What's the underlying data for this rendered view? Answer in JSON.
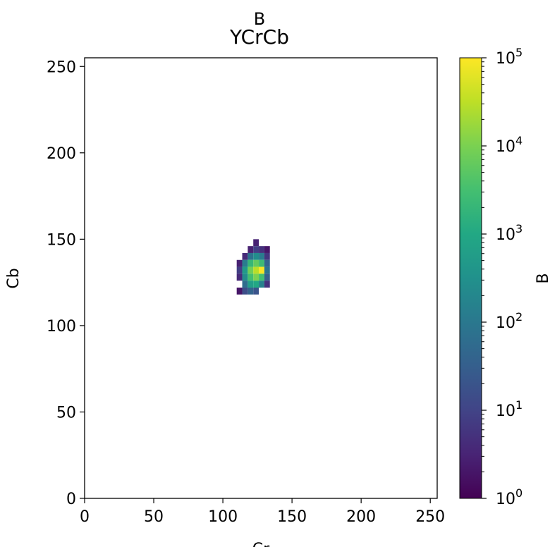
{
  "chart_data": {
    "type": "heatmap",
    "suptitle": "B",
    "title": "YCrCb",
    "xlabel": "Cr",
    "ylabel": "Cb",
    "xlim": [
      0,
      255
    ],
    "ylim": [
      0,
      255
    ],
    "xticks": [
      0,
      50,
      100,
      150,
      200,
      250
    ],
    "yticks": [
      0,
      50,
      100,
      150,
      200,
      250
    ],
    "colormap": "viridis",
    "colorbar": {
      "label": "B",
      "scale": "log",
      "range": [
        1,
        100000
      ],
      "tick_labels": [
        {
          "base": "10",
          "exp": "0"
        },
        {
          "base": "10",
          "exp": "1"
        },
        {
          "base": "10",
          "exp": "2"
        },
        {
          "base": "10",
          "exp": "3"
        },
        {
          "base": "10",
          "exp": "4"
        },
        {
          "base": "10",
          "exp": "5"
        }
      ]
    },
    "bin_size": 4,
    "cells": [
      {
        "x": 122,
        "y": 146,
        "v": 3
      },
      {
        "x": 118,
        "y": 142,
        "v": 3
      },
      {
        "x": 122,
        "y": 142,
        "v": 8
      },
      {
        "x": 126,
        "y": 142,
        "v": 5
      },
      {
        "x": 130,
        "y": 142,
        "v": 2
      },
      {
        "x": 114,
        "y": 138,
        "v": 4
      },
      {
        "x": 118,
        "y": 138,
        "v": 80
      },
      {
        "x": 122,
        "y": 138,
        "v": 250
      },
      {
        "x": 126,
        "y": 138,
        "v": 120
      },
      {
        "x": 130,
        "y": 138,
        "v": 6
      },
      {
        "x": 110,
        "y": 134,
        "v": 3
      },
      {
        "x": 114,
        "y": 134,
        "v": 120
      },
      {
        "x": 118,
        "y": 134,
        "v": 2000
      },
      {
        "x": 122,
        "y": 134,
        "v": 6000
      },
      {
        "x": 126,
        "y": 134,
        "v": 2500
      },
      {
        "x": 130,
        "y": 134,
        "v": 40
      },
      {
        "x": 110,
        "y": 130,
        "v": 8
      },
      {
        "x": 114,
        "y": 130,
        "v": 500
      },
      {
        "x": 118,
        "y": 130,
        "v": 8000
      },
      {
        "x": 122,
        "y": 130,
        "v": 30000
      },
      {
        "x": 126,
        "y": 130,
        "v": 90000
      },
      {
        "x": 130,
        "y": 130,
        "v": 80
      },
      {
        "x": 110,
        "y": 126,
        "v": 4
      },
      {
        "x": 114,
        "y": 126,
        "v": 250
      },
      {
        "x": 118,
        "y": 126,
        "v": 3000
      },
      {
        "x": 122,
        "y": 126,
        "v": 10000
      },
      {
        "x": 126,
        "y": 126,
        "v": 3000
      },
      {
        "x": 130,
        "y": 126,
        "v": 30
      },
      {
        "x": 114,
        "y": 122,
        "v": 60
      },
      {
        "x": 118,
        "y": 122,
        "v": 600
      },
      {
        "x": 122,
        "y": 122,
        "v": 1000
      },
      {
        "x": 126,
        "y": 122,
        "v": 150
      },
      {
        "x": 130,
        "y": 122,
        "v": 5
      },
      {
        "x": 110,
        "y": 118,
        "v": 2
      },
      {
        "x": 114,
        "y": 118,
        "v": 15
      },
      {
        "x": 118,
        "y": 118,
        "v": 40
      },
      {
        "x": 122,
        "y": 118,
        "v": 20
      }
    ]
  }
}
